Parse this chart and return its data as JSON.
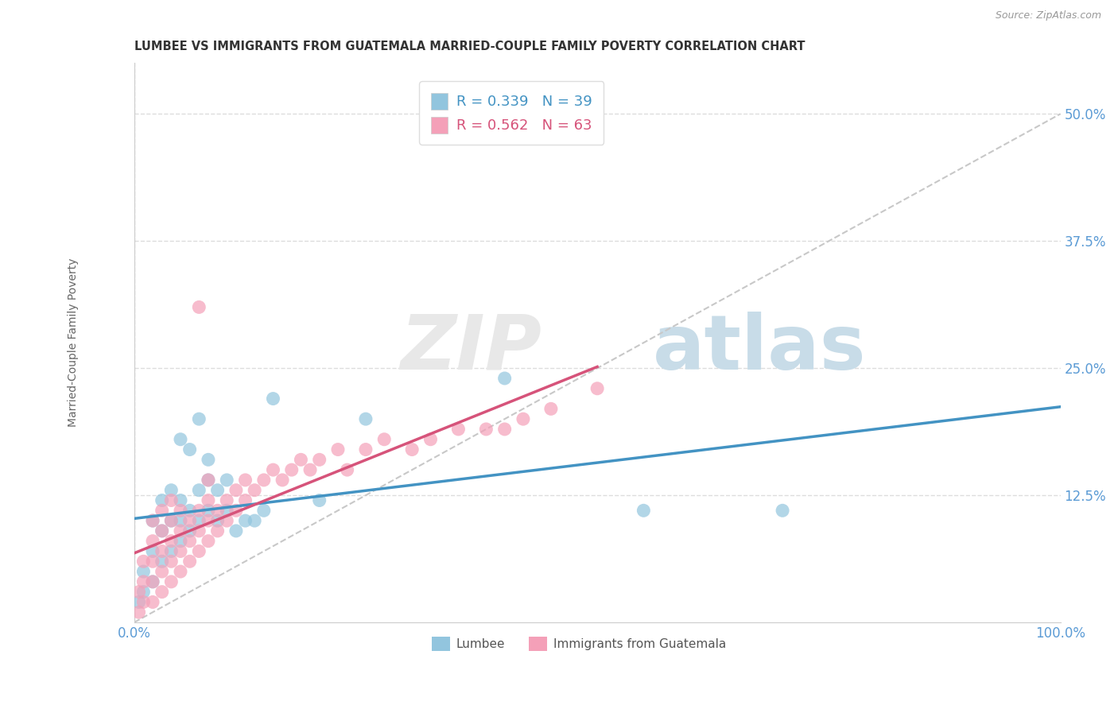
{
  "title": "LUMBEE VS IMMIGRANTS FROM GUATEMALA MARRIED-COUPLE FAMILY POVERTY CORRELATION CHART",
  "source_text": "Source: ZipAtlas.com",
  "ylabel": "Married-Couple Family Poverty",
  "xlim": [
    0,
    100
  ],
  "ylim": [
    0,
    55
  ],
  "R1": 0.339,
  "N1": 39,
  "R2": 0.562,
  "N2": 63,
  "blue_color": "#92c5de",
  "pink_color": "#f4a0b8",
  "blue_line_color": "#4393c3",
  "pink_line_color": "#d6537a",
  "dashed_line_color": "#c8c8c8",
  "grid_color": "#dddddd",
  "legend1_label": "Lumbee",
  "legend2_label": "Immigrants from Guatemala",
  "tick_color": "#5b9bd5",
  "title_color": "#333333",
  "ylabel_color": "#666666",
  "watermark_zip_color": "#e8e8e8",
  "watermark_atlas_color": "#c8dce8",
  "lumbee_x": [
    0.5,
    1,
    1,
    2,
    2,
    2,
    3,
    3,
    3,
    4,
    4,
    4,
    5,
    5,
    5,
    6,
    6,
    7,
    7,
    8,
    8,
    9,
    9,
    10,
    10,
    11,
    12,
    13,
    14,
    15,
    20,
    25,
    40,
    55,
    70,
    5,
    6,
    7,
    8
  ],
  "lumbee_y": [
    2,
    3,
    5,
    4,
    7,
    10,
    6,
    9,
    12,
    7,
    10,
    13,
    8,
    10,
    12,
    9,
    11,
    10,
    13,
    11,
    14,
    10,
    13,
    11,
    14,
    9,
    10,
    10,
    11,
    22,
    12,
    20,
    24,
    11,
    11,
    18,
    17,
    20,
    16
  ],
  "guatemala_x": [
    0.5,
    0.5,
    1,
    1,
    1,
    2,
    2,
    2,
    2,
    2,
    3,
    3,
    3,
    3,
    3,
    4,
    4,
    4,
    4,
    4,
    5,
    5,
    5,
    5,
    6,
    6,
    6,
    7,
    7,
    7,
    7,
    8,
    8,
    8,
    8,
    9,
    9,
    10,
    10,
    11,
    11,
    12,
    12,
    13,
    14,
    15,
    16,
    17,
    18,
    19,
    20,
    22,
    23,
    25,
    27,
    30,
    32,
    35,
    38,
    40,
    42,
    45,
    50
  ],
  "guatemala_y": [
    1,
    3,
    2,
    4,
    6,
    2,
    4,
    6,
    8,
    10,
    3,
    5,
    7,
    9,
    11,
    4,
    6,
    8,
    10,
    12,
    5,
    7,
    9,
    11,
    6,
    8,
    10,
    7,
    9,
    11,
    31,
    8,
    10,
    12,
    14,
    9,
    11,
    10,
    12,
    11,
    13,
    12,
    14,
    13,
    14,
    15,
    14,
    15,
    16,
    15,
    16,
    17,
    15,
    17,
    18,
    17,
    18,
    19,
    19,
    19,
    20,
    21,
    23
  ]
}
